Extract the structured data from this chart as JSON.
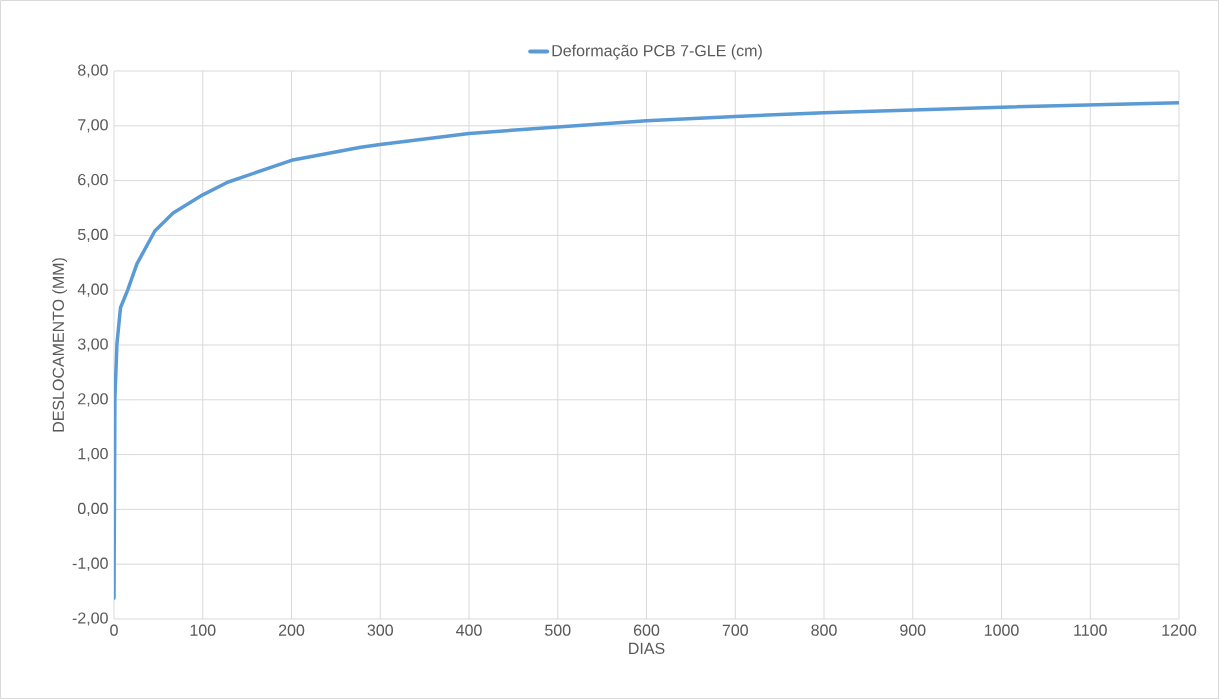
{
  "chart_data": {
    "type": "line",
    "xlabel": "DIAS",
    "ylabel": "DESLOCAMENTO (MM)",
    "series": [
      {
        "name": "Deformação PCB 7-GLE (cm)",
        "color": "#5b9bd5",
        "x": [
          0,
          1,
          3.3,
          7.3,
          15.6,
          25.8,
          46,
          66.6,
          100,
          128,
          200,
          278,
          300,
          400,
          500,
          600,
          700,
          800,
          900,
          1000,
          1100,
          1200
        ],
        "values": [
          -1.62,
          2.02,
          3.02,
          3.68,
          4.01,
          4.48,
          5.08,
          5.41,
          5.74,
          5.97,
          6.37,
          6.61,
          6.66,
          6.86,
          6.98,
          7.09,
          7.17,
          7.24,
          7.29,
          7.34,
          7.38,
          7.42
        ]
      }
    ],
    "xlim": [
      0,
      1200
    ],
    "xticks": [
      0,
      100,
      200,
      300,
      400,
      500,
      600,
      700,
      800,
      900,
      1000,
      1100,
      1200
    ],
    "ylim": [
      -2,
      8
    ],
    "yticks": [
      {
        "value": -2,
        "label": "-2,00"
      },
      {
        "value": -1,
        "label": "-1,00"
      },
      {
        "value": 0,
        "label": "0,00"
      },
      {
        "value": 1,
        "label": "1,00"
      },
      {
        "value": 2,
        "label": "2,00"
      },
      {
        "value": 3,
        "label": "3,00"
      },
      {
        "value": 4,
        "label": "4,00"
      },
      {
        "value": 5,
        "label": "5,00"
      },
      {
        "value": 6,
        "label": "6,00"
      },
      {
        "value": 7,
        "label": "7,00"
      },
      {
        "value": 8,
        "label": "8,00"
      }
    ],
    "grid": true,
    "legend": "top",
    "marker": "none",
    "line_style": "solid"
  }
}
